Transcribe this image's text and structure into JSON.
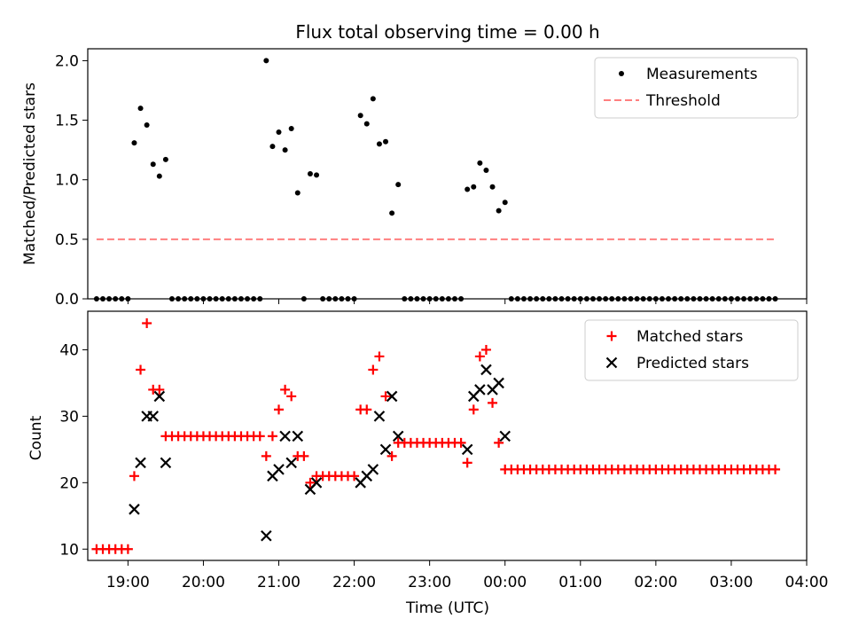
{
  "chart_data": [
    {
      "type": "scatter",
      "title": "Flux total observing time = 0.00 h",
      "xlabel": "",
      "ylabel": "Matched/Predicted stars",
      "xlim": [
        "18:28",
        "04:00"
      ],
      "ylim": [
        0,
        2.1
      ],
      "yticks": [
        "0.0",
        "0.5",
        "1.0",
        "1.5",
        "2.0"
      ],
      "grid": false,
      "legend": "top-right",
      "series": [
        {
          "name": "Measurements",
          "style": "dot",
          "color": "#000000",
          "points": [
            [
              "18:35",
              0
            ],
            [
              "18:40",
              0
            ],
            [
              "18:45",
              0
            ],
            [
              "18:50",
              0
            ],
            [
              "18:55",
              0
            ],
            [
              "19:00",
              0
            ],
            [
              "19:05",
              1.31
            ],
            [
              "19:10",
              1.6
            ],
            [
              "19:15",
              1.46
            ],
            [
              "19:20",
              1.13
            ],
            [
              "19:25",
              1.03
            ],
            [
              "19:30",
              1.17
            ],
            [
              "19:35",
              0
            ],
            [
              "19:40",
              0
            ],
            [
              "19:45",
              0
            ],
            [
              "19:50",
              0
            ],
            [
              "19:55",
              0
            ],
            [
              "20:00",
              0
            ],
            [
              "20:05",
              0
            ],
            [
              "20:10",
              0
            ],
            [
              "20:15",
              0
            ],
            [
              "20:20",
              0
            ],
            [
              "20:25",
              0
            ],
            [
              "20:30",
              0
            ],
            [
              "20:35",
              0
            ],
            [
              "20:40",
              0
            ],
            [
              "20:45",
              0
            ],
            [
              "20:50",
              2.0
            ],
            [
              "20:55",
              1.28
            ],
            [
              "21:00",
              1.4
            ],
            [
              "21:05",
              1.25
            ],
            [
              "21:10",
              1.43
            ],
            [
              "21:15",
              0.89
            ],
            [
              "21:20",
              0
            ],
            [
              "21:25",
              1.05
            ],
            [
              "21:30",
              1.04
            ],
            [
              "21:35",
              0
            ],
            [
              "21:40",
              0
            ],
            [
              "21:45",
              0
            ],
            [
              "21:50",
              0
            ],
            [
              "21:55",
              0
            ],
            [
              "22:00",
              0
            ],
            [
              "22:05",
              1.54
            ],
            [
              "22:10",
              1.47
            ],
            [
              "22:15",
              1.68
            ],
            [
              "22:20",
              1.3
            ],
            [
              "22:25",
              1.32
            ],
            [
              "22:30",
              0.72
            ],
            [
              "22:35",
              0.96
            ],
            [
              "22:40",
              0
            ],
            [
              "22:45",
              0
            ],
            [
              "22:50",
              0
            ],
            [
              "22:55",
              0
            ],
            [
              "23:00",
              0
            ],
            [
              "23:05",
              0
            ],
            [
              "23:10",
              0
            ],
            [
              "23:15",
              0
            ],
            [
              "23:20",
              0
            ],
            [
              "23:25",
              0
            ],
            [
              "23:30",
              0.92
            ],
            [
              "23:35",
              0.94
            ],
            [
              "23:40",
              1.14
            ],
            [
              "23:45",
              1.08
            ],
            [
              "23:50",
              0.94
            ],
            [
              "23:55",
              0.74
            ],
            [
              "00:00",
              0.81
            ],
            [
              "00:05",
              0
            ],
            [
              "00:10",
              0
            ],
            [
              "00:15",
              0
            ],
            [
              "00:20",
              0
            ],
            [
              "00:25",
              0
            ],
            [
              "00:30",
              0
            ],
            [
              "00:35",
              0
            ],
            [
              "00:40",
              0
            ],
            [
              "00:45",
              0
            ],
            [
              "00:50",
              0
            ],
            [
              "00:55",
              0
            ],
            [
              "01:00",
              0
            ],
            [
              "01:05",
              0
            ],
            [
              "01:10",
              0
            ],
            [
              "01:15",
              0
            ],
            [
              "01:20",
              0
            ],
            [
              "01:25",
              0
            ],
            [
              "01:30",
              0
            ],
            [
              "01:35",
              0
            ],
            [
              "01:40",
              0
            ],
            [
              "01:45",
              0
            ],
            [
              "01:50",
              0
            ],
            [
              "01:55",
              0
            ],
            [
              "02:00",
              0
            ],
            [
              "02:05",
              0
            ],
            [
              "02:10",
              0
            ],
            [
              "02:15",
              0
            ],
            [
              "02:20",
              0
            ],
            [
              "02:25",
              0
            ],
            [
              "02:30",
              0
            ],
            [
              "02:35",
              0
            ],
            [
              "02:40",
              0
            ],
            [
              "02:45",
              0
            ],
            [
              "02:50",
              0
            ],
            [
              "02:55",
              0
            ],
            [
              "03:00",
              0
            ],
            [
              "03:05",
              0
            ],
            [
              "03:10",
              0
            ],
            [
              "03:15",
              0
            ],
            [
              "03:20",
              0
            ],
            [
              "03:25",
              0
            ],
            [
              "03:30",
              0
            ],
            [
              "03:35",
              0
            ]
          ]
        },
        {
          "name": "Threshold",
          "style": "dashed-line",
          "color": "#ff7f7f",
          "points": [
            [
              "18:35",
              0.5
            ],
            [
              "03:35",
              0.5
            ]
          ]
        }
      ]
    },
    {
      "type": "scatter",
      "title": "",
      "xlabel": "Time (UTC)",
      "ylabel": "Count",
      "xlim": [
        "18:28",
        "04:00"
      ],
      "ylim": [
        8.3,
        45.8
      ],
      "xticks": [
        "19:00",
        "20:00",
        "21:00",
        "22:00",
        "23:00",
        "00:00",
        "01:00",
        "02:00",
        "03:00",
        "04:00"
      ],
      "yticks": [
        "10",
        "20",
        "30",
        "40"
      ],
      "grid": false,
      "legend": "top-right",
      "series": [
        {
          "name": "Matched stars",
          "style": "plus",
          "color": "#ff0000",
          "points": [
            [
              "18:35",
              10
            ],
            [
              "18:40",
              10
            ],
            [
              "18:45",
              10
            ],
            [
              "18:50",
              10
            ],
            [
              "18:55",
              10
            ],
            [
              "19:00",
              10
            ],
            [
              "19:05",
              21
            ],
            [
              "19:10",
              37
            ],
            [
              "19:15",
              44
            ],
            [
              "19:20",
              34
            ],
            [
              "19:25",
              34
            ],
            [
              "19:30",
              27
            ],
            [
              "19:35",
              27
            ],
            [
              "19:40",
              27
            ],
            [
              "19:45",
              27
            ],
            [
              "19:50",
              27
            ],
            [
              "19:55",
              27
            ],
            [
              "20:00",
              27
            ],
            [
              "20:05",
              27
            ],
            [
              "20:10",
              27
            ],
            [
              "20:15",
              27
            ],
            [
              "20:20",
              27
            ],
            [
              "20:25",
              27
            ],
            [
              "20:30",
              27
            ],
            [
              "20:35",
              27
            ],
            [
              "20:40",
              27
            ],
            [
              "20:45",
              27
            ],
            [
              "20:50",
              24
            ],
            [
              "20:55",
              27
            ],
            [
              "21:00",
              31
            ],
            [
              "21:05",
              34
            ],
            [
              "21:10",
              33
            ],
            [
              "21:15",
              24
            ],
            [
              "21:20",
              24
            ],
            [
              "21:25",
              20
            ],
            [
              "21:30",
              21
            ],
            [
              "21:35",
              21
            ],
            [
              "21:40",
              21
            ],
            [
              "21:45",
              21
            ],
            [
              "21:50",
              21
            ],
            [
              "21:55",
              21
            ],
            [
              "22:00",
              21
            ],
            [
              "22:05",
              31
            ],
            [
              "22:10",
              31
            ],
            [
              "22:15",
              37
            ],
            [
              "22:20",
              39
            ],
            [
              "22:25",
              33
            ],
            [
              "22:30",
              24
            ],
            [
              "22:35",
              26
            ],
            [
              "22:40",
              26
            ],
            [
              "22:45",
              26
            ],
            [
              "22:50",
              26
            ],
            [
              "22:55",
              26
            ],
            [
              "23:00",
              26
            ],
            [
              "23:05",
              26
            ],
            [
              "23:10",
              26
            ],
            [
              "23:15",
              26
            ],
            [
              "23:20",
              26
            ],
            [
              "23:25",
              26
            ],
            [
              "23:30",
              23
            ],
            [
              "23:35",
              31
            ],
            [
              "23:40",
              39
            ],
            [
              "23:45",
              40
            ],
            [
              "23:50",
              32
            ],
            [
              "23:55",
              26
            ],
            [
              "00:00",
              22
            ],
            [
              "00:05",
              22
            ],
            [
              "00:10",
              22
            ],
            [
              "00:15",
              22
            ],
            [
              "00:20",
              22
            ],
            [
              "00:25",
              22
            ],
            [
              "00:30",
              22
            ],
            [
              "00:35",
              22
            ],
            [
              "00:40",
              22
            ],
            [
              "00:45",
              22
            ],
            [
              "00:50",
              22
            ],
            [
              "00:55",
              22
            ],
            [
              "01:00",
              22
            ],
            [
              "01:05",
              22
            ],
            [
              "01:10",
              22
            ],
            [
              "01:15",
              22
            ],
            [
              "01:20",
              22
            ],
            [
              "01:25",
              22
            ],
            [
              "01:30",
              22
            ],
            [
              "01:35",
              22
            ],
            [
              "01:40",
              22
            ],
            [
              "01:45",
              22
            ],
            [
              "01:50",
              22
            ],
            [
              "01:55",
              22
            ],
            [
              "02:00",
              22
            ],
            [
              "02:05",
              22
            ],
            [
              "02:10",
              22
            ],
            [
              "02:15",
              22
            ],
            [
              "02:20",
              22
            ],
            [
              "02:25",
              22
            ],
            [
              "02:30",
              22
            ],
            [
              "02:35",
              22
            ],
            [
              "02:40",
              22
            ],
            [
              "02:45",
              22
            ],
            [
              "02:50",
              22
            ],
            [
              "02:55",
              22
            ],
            [
              "03:00",
              22
            ],
            [
              "03:05",
              22
            ],
            [
              "03:10",
              22
            ],
            [
              "03:15",
              22
            ],
            [
              "03:20",
              22
            ],
            [
              "03:25",
              22
            ],
            [
              "03:30",
              22
            ],
            [
              "03:35",
              22
            ]
          ]
        },
        {
          "name": "Predicted stars",
          "style": "x",
          "color": "#000000",
          "points": [
            [
              "19:05",
              16
            ],
            [
              "19:10",
              23
            ],
            [
              "19:15",
              30
            ],
            [
              "19:20",
              30
            ],
            [
              "19:25",
              33
            ],
            [
              "19:30",
              23
            ],
            [
              "20:50",
              12
            ],
            [
              "20:55",
              21
            ],
            [
              "21:00",
              22
            ],
            [
              "21:05",
              27
            ],
            [
              "21:10",
              23
            ],
            [
              "21:15",
              27
            ],
            [
              "21:25",
              19
            ],
            [
              "21:30",
              20
            ],
            [
              "22:05",
              20
            ],
            [
              "22:10",
              21
            ],
            [
              "22:15",
              22
            ],
            [
              "22:20",
              30
            ],
            [
              "22:25",
              25
            ],
            [
              "22:30",
              33
            ],
            [
              "22:35",
              27
            ],
            [
              "23:30",
              25
            ],
            [
              "23:35",
              33
            ],
            [
              "23:40",
              34
            ],
            [
              "23:45",
              37
            ],
            [
              "23:50",
              34
            ],
            [
              "23:55",
              35
            ],
            [
              "00:00",
              27
            ]
          ]
        }
      ]
    }
  ]
}
